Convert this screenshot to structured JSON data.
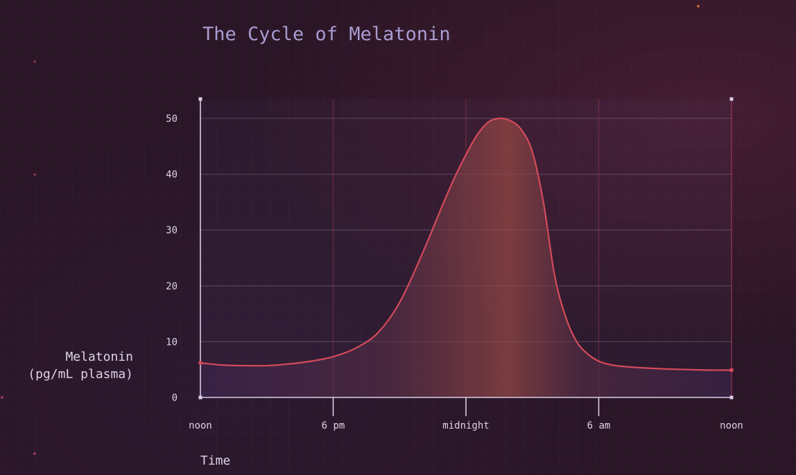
{
  "chart_data": {
    "type": "area",
    "title": "The Cycle of Melatonin",
    "xlabel": "Time",
    "ylabel_lines": [
      "Melatonin",
      "(pg/mL plasma)"
    ],
    "x_ticks": [
      {
        "value": 0,
        "label": "noon"
      },
      {
        "value": 6,
        "label": "6 pm"
      },
      {
        "value": 12,
        "label": "midnight"
      },
      {
        "value": 18,
        "label": "6 am"
      },
      {
        "value": 24,
        "label": "noon"
      }
    ],
    "xlim": [
      0,
      24
    ],
    "ylim": [
      0,
      53
    ],
    "y_ticks": [
      0,
      10,
      20,
      30,
      40,
      50
    ],
    "grid": true,
    "series": [
      {
        "x": [
          0,
          1,
          2,
          3,
          4,
          5,
          6,
          7,
          8,
          9,
          10,
          11,
          11.5,
          12,
          12.5,
          13,
          13.5,
          14,
          14.5,
          15,
          15.5,
          16,
          16.5,
          17,
          17.5,
          18,
          18.5,
          19,
          20,
          21,
          22,
          23,
          24
        ],
        "y": [
          6.2,
          5.8,
          5.7,
          5.7,
          6.0,
          6.5,
          7.3,
          8.8,
          11.5,
          17,
          25.5,
          35,
          39.5,
          43.5,
          47,
          49.3,
          50,
          49.6,
          48,
          44,
          35,
          22,
          14.5,
          10,
          7.8,
          6.5,
          5.9,
          5.6,
          5.3,
          5.1,
          5.0,
          4.9,
          4.9
        ]
      }
    ],
    "colors": {
      "line": "#d64a5c",
      "axis": "#d8cee6",
      "title": "#a99cd0",
      "text": "#ddd3e6",
      "background": "#2a1626"
    }
  }
}
